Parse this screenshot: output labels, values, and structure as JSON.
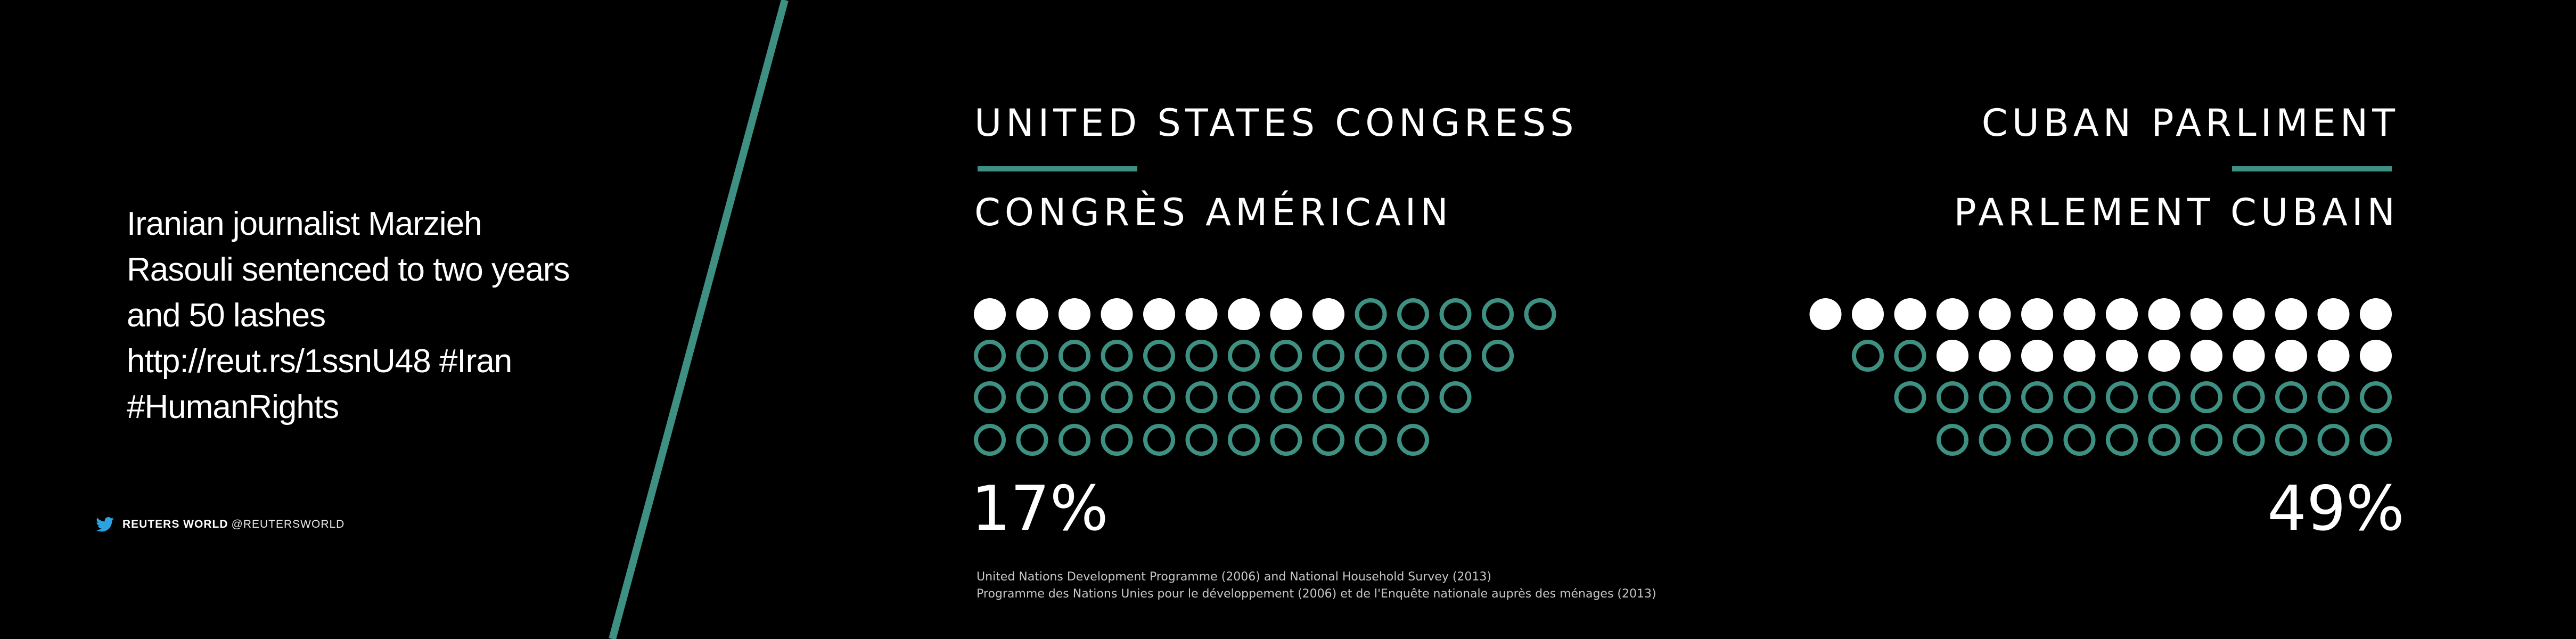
{
  "tweet": {
    "lines": [
      "Iranian journalist Marzieh",
      "Rasouli sentenced to two years",
      "and 50 lashes",
      "http://reut.rs/1ssnU48  #Iran",
      "#HumanRights"
    ]
  },
  "attribution": {
    "icon": "twitter-bird-icon",
    "name": "REUTERS WORLD",
    "handle": "@REUTERSWORLD"
  },
  "colors": {
    "background": "#000000",
    "accent": "#3e9182",
    "filled_dot": "#ffffff",
    "twitter_blue": "#2aa3e0"
  },
  "us_congress": {
    "title_en": "UNITED STATES CONGRESS",
    "title_fr": "CONGRÈS AMÉRICAIN",
    "percent": "17%",
    "rows": [
      {
        "filled": 9,
        "empty": 5
      },
      {
        "filled": 0,
        "empty": 13
      },
      {
        "filled": 0,
        "empty": 12
      },
      {
        "filled": 0,
        "empty": 11
      }
    ]
  },
  "cuban_parliament": {
    "title_en": "CUBAN PARLIMENT",
    "title_fr": "PARLEMENT CUBAIN",
    "percent": "49%",
    "rows": [
      {
        "filled": 14,
        "empty": 0
      },
      {
        "filled": 11,
        "empty": 2
      },
      {
        "filled": 0,
        "empty": 12
      },
      {
        "filled": 0,
        "empty": 11
      }
    ]
  },
  "source": {
    "line_en": "United Nations Development Programme (2006) and National Household Survey (2013)",
    "line_fr": "Programme des Nations Unies pour le développement (2006) et de l'Enquête nationale auprès des ménages (2013)"
  }
}
